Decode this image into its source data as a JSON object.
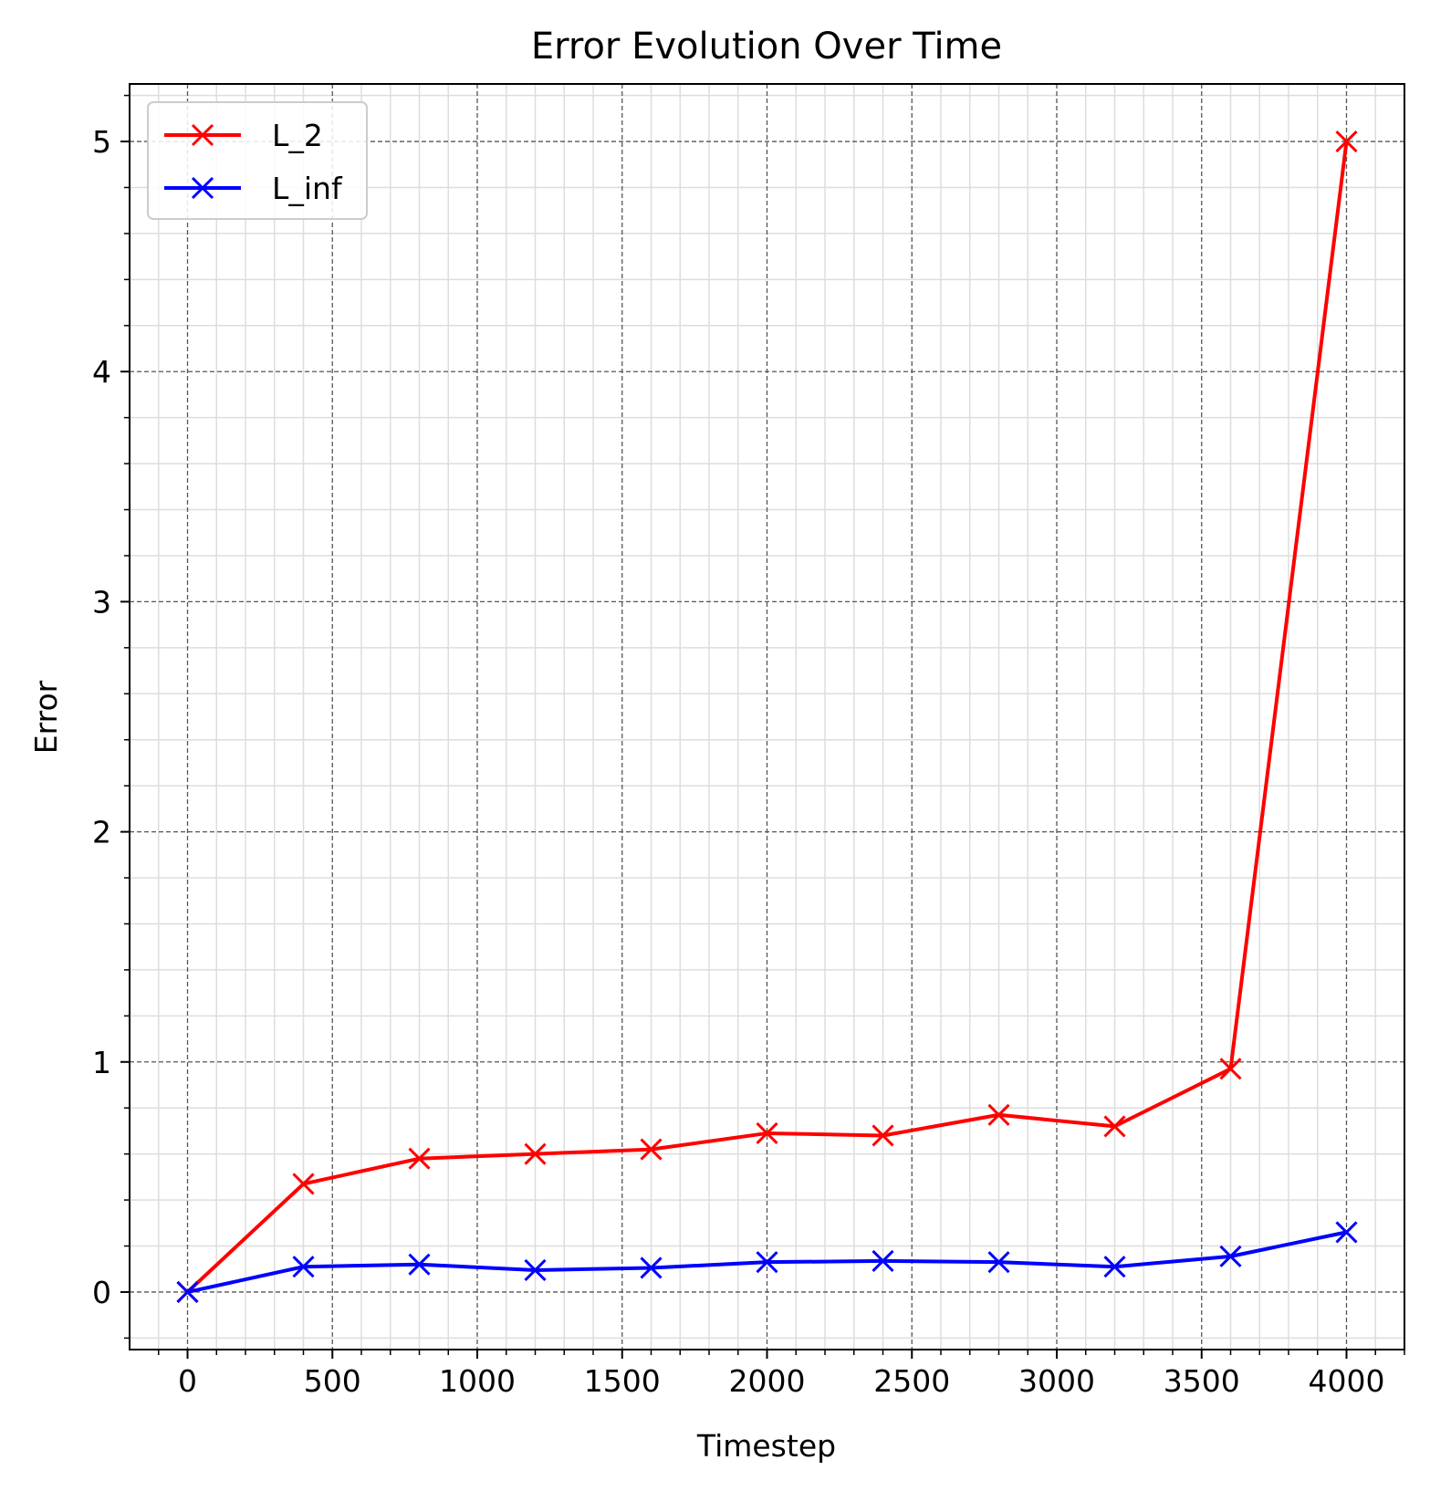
{
  "chart_data": {
    "type": "line",
    "title": "Error Evolution Over Time",
    "xlabel": "Timestep",
    "ylabel": "Error",
    "xlim": [
      -200,
      4200
    ],
    "ylim": [
      -0.25,
      5.25
    ],
    "xticks": [
      0,
      500,
      1000,
      1500,
      2000,
      2500,
      3000,
      3500,
      4000
    ],
    "yticks": [
      0,
      1,
      2,
      3,
      4,
      5
    ],
    "x": [
      0,
      400,
      800,
      1200,
      1600,
      2000,
      2400,
      2800,
      3200,
      3600,
      4000
    ],
    "series": [
      {
        "name": "L_2",
        "color": "#ff0000",
        "marker": "x",
        "values": [
          0.0,
          0.47,
          0.58,
          0.6,
          0.62,
          0.69,
          0.68,
          0.77,
          0.72,
          0.97,
          5.0
        ]
      },
      {
        "name": "L_inf",
        "color": "#0000ff",
        "marker": "x",
        "values": [
          0.0,
          0.11,
          0.12,
          0.095,
          0.105,
          0.13,
          0.135,
          0.13,
          0.11,
          0.155,
          0.26
        ]
      }
    ],
    "grid": {
      "major": true,
      "minor": true,
      "major_color": "#555555",
      "minor_color": "#dddddd"
    },
    "legend": {
      "location": "upper-left"
    }
  }
}
